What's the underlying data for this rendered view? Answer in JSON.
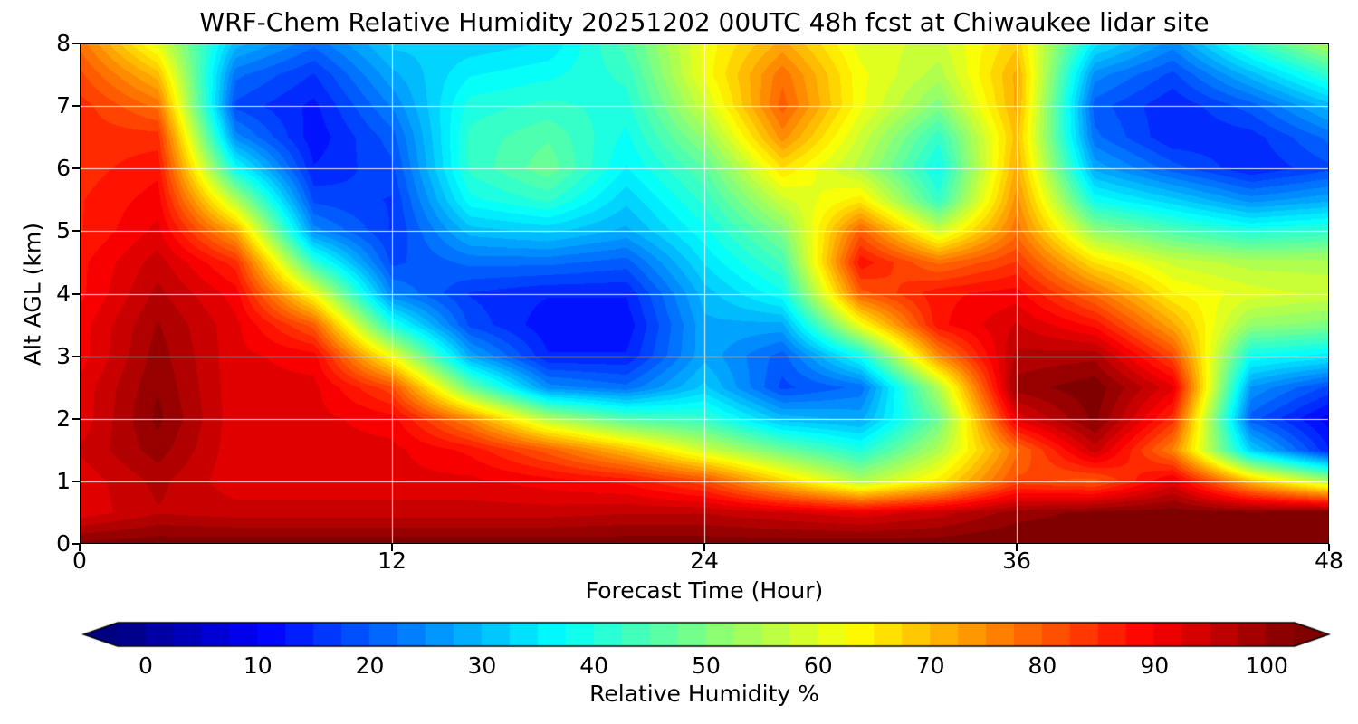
{
  "chart_data": {
    "type": "heatmap",
    "title": "WRF-Chem Relative Humidity 20251202 00UTC 48h fcst at Chiwaukee lidar site",
    "xlabel": "Forecast Time (Hour)",
    "ylabel": "Alt AGL (km)",
    "colormap": "jet",
    "xlim": [
      0,
      48
    ],
    "ylim": [
      0,
      8
    ],
    "x_ticks": [
      0,
      12,
      24,
      36,
      48
    ],
    "y_ticks": [
      0,
      1,
      2,
      3,
      4,
      5,
      6,
      7,
      8
    ],
    "grid": true,
    "grid_color": "#ffffff",
    "x_hours": [
      0,
      3,
      6,
      9,
      12,
      15,
      18,
      21,
      24,
      27,
      30,
      33,
      36,
      39,
      42,
      45,
      48
    ],
    "y_km": [
      8,
      7.5,
      7,
      6.5,
      6,
      5.5,
      5,
      4.5,
      4,
      3.5,
      3,
      2.5,
      2,
      1.5,
      1,
      0.5,
      0
    ],
    "values_rh_percent": [
      [
        78,
        60,
        30,
        22,
        32,
        32,
        34,
        45,
        62,
        72,
        60,
        58,
        68,
        35,
        25,
        42,
        55
      ],
      [
        82,
        70,
        22,
        16,
        28,
        36,
        38,
        42,
        62,
        78,
        62,
        55,
        72,
        25,
        18,
        30,
        42
      ],
      [
        85,
        78,
        18,
        13,
        24,
        40,
        42,
        40,
        58,
        80,
        62,
        50,
        72,
        20,
        14,
        20,
        30
      ],
      [
        85,
        85,
        25,
        12,
        20,
        42,
        46,
        38,
        52,
        75,
        58,
        42,
        70,
        22,
        14,
        15,
        22
      ],
      [
        85,
        88,
        38,
        14,
        18,
        42,
        48,
        36,
        46,
        66,
        55,
        38,
        72,
        28,
        20,
        14,
        18
      ],
      [
        86,
        90,
        55,
        18,
        16,
        38,
        42,
        32,
        42,
        58,
        65,
        42,
        75,
        38,
        32,
        25,
        28
      ],
      [
        86,
        92,
        72,
        25,
        16,
        30,
        32,
        28,
        38,
        50,
        80,
        58,
        78,
        52,
        45,
        40,
        42
      ],
      [
        88,
        95,
        85,
        42,
        18,
        22,
        22,
        20,
        34,
        44,
        88,
        78,
        84,
        66,
        58,
        55,
        55
      ],
      [
        88,
        97,
        90,
        62,
        24,
        16,
        14,
        14,
        30,
        38,
        80,
        88,
        90,
        78,
        64,
        60,
        58
      ],
      [
        90,
        99,
        92,
        80,
        40,
        18,
        12,
        12,
        28,
        28,
        62,
        88,
        94,
        88,
        72,
        52,
        50
      ],
      [
        90,
        100,
        92,
        90,
        62,
        28,
        14,
        14,
        28,
        20,
        38,
        75,
        97,
        98,
        82,
        38,
        35
      ],
      [
        92,
        101,
        92,
        92,
        82,
        48,
        25,
        22,
        32,
        18,
        22,
        55,
        100,
        103,
        92,
        26,
        18
      ],
      [
        92,
        102,
        92,
        92,
        90,
        75,
        55,
        45,
        42,
        30,
        28,
        48,
        92,
        102,
        85,
        20,
        10
      ],
      [
        94,
        100,
        92,
        92,
        92,
        88,
        80,
        70,
        58,
        48,
        40,
        55,
        78,
        95,
        76,
        32,
        14
      ],
      [
        92,
        97,
        92,
        92,
        92,
        92,
        90,
        88,
        82,
        68,
        55,
        65,
        82,
        80,
        92,
        70,
        55
      ],
      [
        92,
        96,
        95,
        95,
        95,
        95,
        95,
        96,
        96,
        94,
        92,
        95,
        100,
        102,
        103,
        102,
        103
      ],
      [
        102,
        103,
        103,
        103,
        103,
        103,
        103,
        103,
        103,
        103,
        103,
        103,
        104,
        104,
        104,
        104,
        104
      ]
    ],
    "colorbar": {
      "label": "Relative Humidity %",
      "ticks": [
        0,
        10,
        20,
        30,
        40,
        50,
        60,
        70,
        80,
        90,
        100
      ],
      "vmin": -2.5,
      "vmax": 102.5,
      "level_step": 2.5,
      "extend": "both"
    }
  }
}
